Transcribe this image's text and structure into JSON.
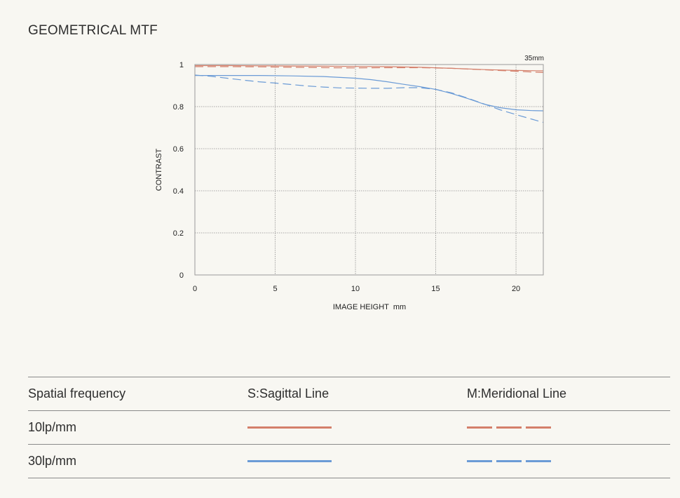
{
  "title": "GEOMETRICAL MTF",
  "chart_data": {
    "type": "line",
    "title": "",
    "focal_label": "35mm",
    "xlabel": "IMAGE HEIGHT  mm",
    "ylabel": "CONTRAST",
    "xlim": [
      0,
      21.7
    ],
    "ylim": [
      0,
      1
    ],
    "xticks": [
      0,
      5,
      10,
      15,
      20
    ],
    "yticks": [
      0,
      0.2,
      0.4,
      0.6,
      0.8,
      1
    ],
    "ytick_labels": [
      "0",
      "0.2",
      "0.4",
      "0.6",
      "0.8",
      "1"
    ],
    "grid": true,
    "colors": {
      "10lp": "#d47f6b",
      "30lp": "#6b9bd6"
    },
    "series": [
      {
        "name": "10lp/mm S",
        "style": "solid",
        "color": "#d47f6b",
        "x": [
          0,
          2,
          4,
          6,
          8,
          10,
          12,
          14,
          16,
          18,
          20,
          21.7
        ],
        "y": [
          0.995,
          0.995,
          0.994,
          0.993,
          0.992,
          0.991,
          0.99,
          0.987,
          0.982,
          0.976,
          0.972,
          0.97
        ]
      },
      {
        "name": "10lp/mm M",
        "style": "dashed",
        "color": "#d47f6b",
        "x": [
          0,
          2,
          4,
          6,
          8,
          10,
          12,
          14,
          16,
          18,
          20,
          21.7
        ],
        "y": [
          0.99,
          0.99,
          0.989,
          0.987,
          0.985,
          0.984,
          0.985,
          0.985,
          0.982,
          0.975,
          0.968,
          0.962
        ]
      },
      {
        "name": "30lp/mm S",
        "style": "solid",
        "color": "#6b9bd6",
        "x": [
          0,
          2,
          4,
          6,
          8,
          10,
          11,
          12,
          13,
          14,
          15,
          16,
          17,
          18,
          19,
          20,
          21,
          21.7
        ],
        "y": [
          0.948,
          0.948,
          0.948,
          0.946,
          0.943,
          0.935,
          0.928,
          0.918,
          0.906,
          0.895,
          0.882,
          0.862,
          0.838,
          0.812,
          0.795,
          0.785,
          0.781,
          0.78
        ]
      },
      {
        "name": "30lp/mm M",
        "style": "dashed",
        "color": "#6b9bd6",
        "x": [
          0,
          1,
          2,
          3,
          4,
          5,
          6,
          7,
          8,
          9,
          10,
          11,
          12,
          13,
          14,
          15,
          16,
          17,
          18,
          19,
          20,
          21,
          21.7
        ],
        "y": [
          0.95,
          0.944,
          0.935,
          0.926,
          0.918,
          0.912,
          0.905,
          0.898,
          0.893,
          0.889,
          0.888,
          0.887,
          0.887,
          0.89,
          0.89,
          0.882,
          0.865,
          0.84,
          0.813,
          0.785,
          0.762,
          0.74,
          0.725
        ]
      }
    ]
  },
  "legend": {
    "headers": [
      "Spatial frequency",
      "S:Sagittal Line",
      "M:Meridional Line"
    ],
    "rows": [
      {
        "label": "10lp/mm",
        "color": "#d47f6b"
      },
      {
        "label": "30lp/mm",
        "color": "#6b9bd6"
      }
    ]
  }
}
